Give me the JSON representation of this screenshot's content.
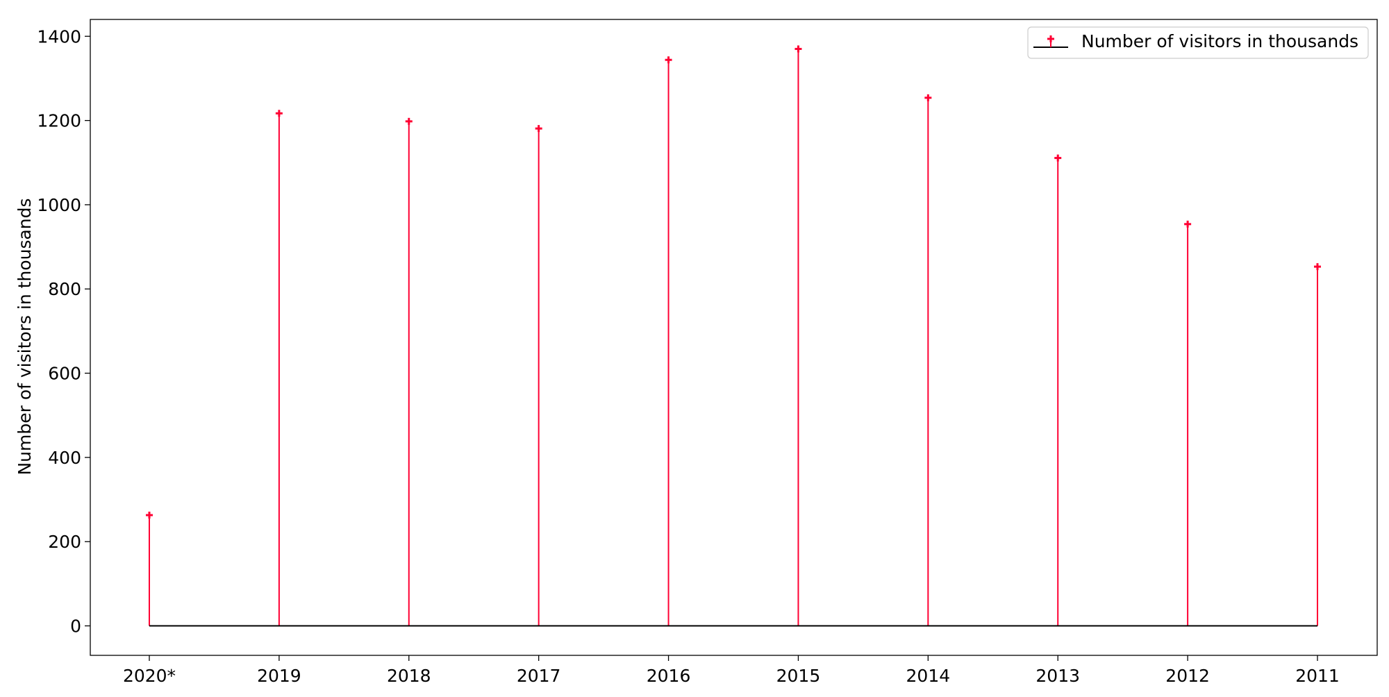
{
  "chart_data": {
    "type": "stem",
    "categories": [
      "2020*",
      "2019",
      "2018",
      "2017",
      "2016",
      "2015",
      "2014",
      "2013",
      "2012",
      "2011"
    ],
    "series": [
      {
        "name": "Number of visitors in thousands",
        "values": [
          263,
          1217,
          1198,
          1181,
          1344,
          1370,
          1254,
          1111,
          954,
          853
        ]
      }
    ],
    "title": "",
    "xlabel": "",
    "ylabel": "Number of visitors in thousands",
    "ylim": [
      -70,
      1440
    ],
    "yticks": [
      0,
      200,
      400,
      600,
      800,
      1000,
      1200,
      1400
    ],
    "grid": false,
    "legend_position": "top-right",
    "colors": {
      "stem": "#ff0033",
      "baseline": "#000000",
      "marker": "#ff0033",
      "axis": "#000000"
    },
    "marker": "plus"
  }
}
